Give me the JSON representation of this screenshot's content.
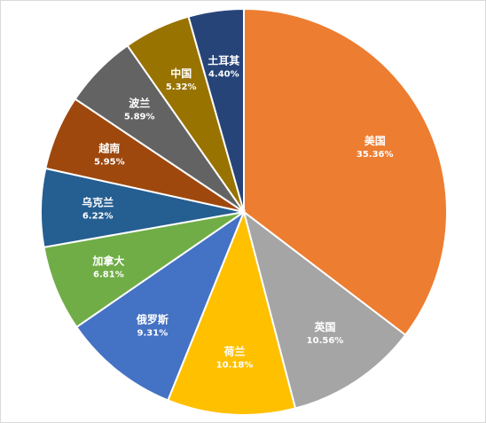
{
  "chart_data": {
    "type": "pie",
    "title": "",
    "start_angle_deg": 0,
    "direction": "clockwise",
    "legend": "none",
    "slices": [
      {
        "label": "美国",
        "value": 35.36,
        "value_label": "35.36%",
        "color": "#ED7D31"
      },
      {
        "label": "英国",
        "value": 10.56,
        "value_label": "10.56%",
        "color": "#A5A5A5"
      },
      {
        "label": "荷兰",
        "value": 10.18,
        "value_label": "10.18%",
        "color": "#FFC000"
      },
      {
        "label": "俄罗斯",
        "value": 9.31,
        "value_label": "9.31%",
        "color": "#4472C4"
      },
      {
        "label": "加拿大",
        "value": 6.81,
        "value_label": "6.81%",
        "color": "#70AD47"
      },
      {
        "label": "乌克兰",
        "value": 6.22,
        "value_label": "6.22%",
        "color": "#255E91"
      },
      {
        "label": "越南",
        "value": 5.95,
        "value_label": "5.95%",
        "color": "#9E480E"
      },
      {
        "label": "波兰",
        "value": 5.89,
        "value_label": "5.89%",
        "color": "#636363"
      },
      {
        "label": "中国",
        "value": 5.32,
        "value_label": "5.32%",
        "color": "#997300"
      },
      {
        "label": "土耳其",
        "value": 4.4,
        "value_label": "4.40%",
        "color": "#264478"
      }
    ]
  }
}
